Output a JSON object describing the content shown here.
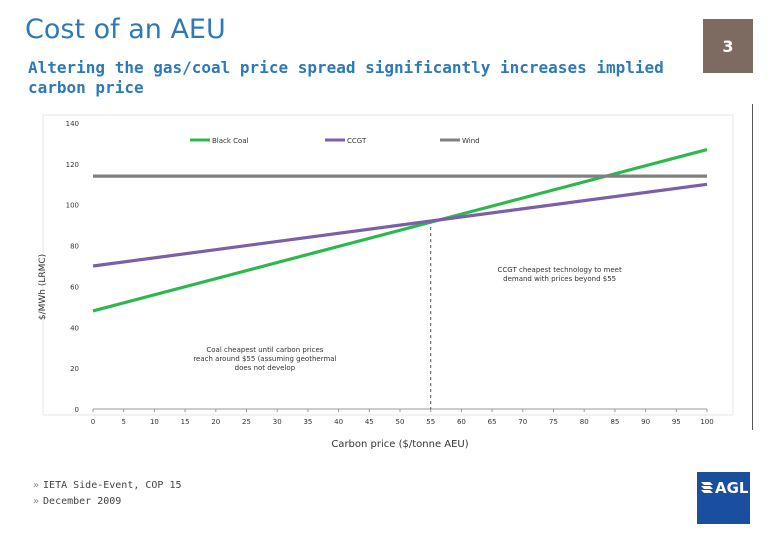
{
  "slide": {
    "title": "Cost of an AEU",
    "page_number": "3",
    "subtitle": "Altering the gas/coal price spread significantly increases implied carbon price"
  },
  "footer": {
    "items": [
      "IETA Side-Event, COP 15",
      "December 2009"
    ],
    "bullet_glyph": "»"
  },
  "logo": {
    "text": "AGL",
    "color": "#1a4fa0",
    "icon": "agl-logo-icon"
  },
  "colors": {
    "title": "#2e7ab8",
    "badge": "#7d6a61"
  },
  "chart_data": {
    "type": "line",
    "title": "",
    "xlabel": "Carbon price ($/tonne AEU)",
    "ylabel": "$/MWh (LRMC)",
    "xlim": [
      0,
      100
    ],
    "ylim": [
      0,
      140
    ],
    "x_ticks": [
      0,
      5,
      10,
      15,
      20,
      25,
      30,
      35,
      40,
      45,
      50,
      55,
      60,
      65,
      70,
      75,
      80,
      85,
      90,
      95,
      100
    ],
    "y_ticks": [
      0,
      20,
      40,
      60,
      80,
      100,
      120,
      140
    ],
    "grid": false,
    "legend_position": "top",
    "series": [
      {
        "name": "Black Coal",
        "color": "#2db84d",
        "x": [
          0,
          100
        ],
        "values": [
          48,
          127
        ]
      },
      {
        "name": "CCGT",
        "color": "#7b5fa8",
        "x": [
          0,
          100
        ],
        "values": [
          70,
          110
        ]
      },
      {
        "name": "Wind",
        "color": "#808080",
        "x": [
          0,
          100
        ],
        "values": [
          114,
          114
        ]
      }
    ],
    "crossover": {
      "x": 55,
      "y": 92
    },
    "annotations": [
      {
        "text": "CCGT cheapest technology to meet demand with prices beyond $55",
        "x": 76,
        "y": 67
      },
      {
        "text": "Coal cheapest until carbon prices reach around $55 (assuming geothermal does not develop",
        "x": 28,
        "y": 28
      }
    ]
  }
}
